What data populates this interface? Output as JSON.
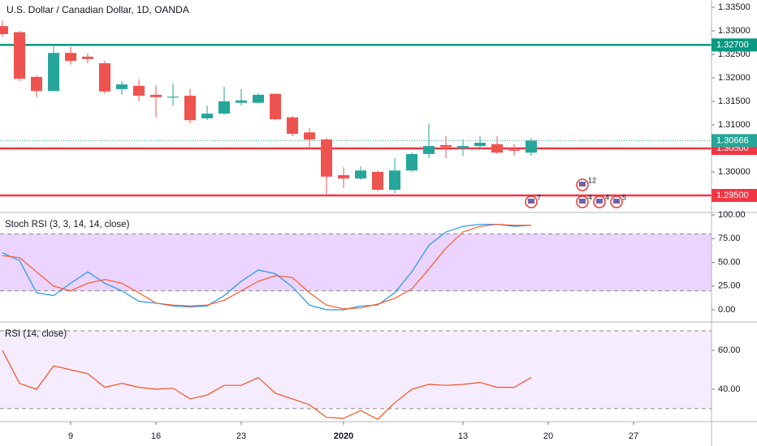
{
  "chart_data": [
    {
      "type": "candlestick",
      "title": "U.S. Dollar / Canadian Dollar, 1D, OANDA",
      "x": [
        0,
        1,
        2,
        3,
        4,
        5,
        6,
        7,
        8,
        9,
        10,
        11,
        12,
        13,
        14,
        15,
        16,
        17,
        18,
        19,
        20,
        21,
        22,
        23,
        24,
        25,
        26,
        27,
        28,
        29,
        30,
        31
      ],
      "open": [
        1.331,
        1.3297,
        1.3202,
        1.3172,
        1.3253,
        1.3245,
        1.3231,
        1.3176,
        1.3183,
        1.3164,
        1.3158,
        1.3162,
        1.3114,
        1.3124,
        1.3147,
        1.3147,
        1.3166,
        1.3116,
        1.3084,
        1.3069,
        1.2993,
        1.2986,
        1.3,
        1.2962,
        1.3003,
        1.3038,
        1.3057,
        1.305,
        1.3055,
        1.3059,
        1.3047,
        1.3041
      ],
      "high": [
        1.3322,
        1.33,
        1.3205,
        1.3267,
        1.3266,
        1.3252,
        1.3236,
        1.3193,
        1.3197,
        1.3184,
        1.3188,
        1.3176,
        1.3141,
        1.3181,
        1.3176,
        1.3167,
        1.3167,
        1.3119,
        1.3093,
        1.3072,
        1.301,
        1.3012,
        1.3003,
        1.3029,
        1.3041,
        1.3103,
        1.3076,
        1.3069,
        1.3076,
        1.3076,
        1.3059,
        1.3072
      ],
      "low": [
        1.3288,
        1.3193,
        1.3159,
        1.3172,
        1.3228,
        1.3231,
        1.3167,
        1.3164,
        1.315,
        1.3116,
        1.3141,
        1.3103,
        1.311,
        1.3121,
        1.3141,
        1.3145,
        1.311,
        1.3076,
        1.3052,
        1.2948,
        1.2966,
        1.2983,
        1.2959,
        1.2955,
        1.3,
        1.3029,
        1.3029,
        1.3034,
        1.3047,
        1.3038,
        1.3034,
        1.3034
      ],
      "close": [
        1.3293,
        1.3198,
        1.3172,
        1.3253,
        1.3236,
        1.324,
        1.3171,
        1.3186,
        1.3162,
        1.3159,
        1.316,
        1.311,
        1.3124,
        1.315,
        1.3152,
        1.3164,
        1.3112,
        1.3081,
        1.3069,
        1.299,
        1.2986,
        1.3003,
        1.2962,
        1.3003,
        1.3038,
        1.3055,
        1.3053,
        1.3055,
        1.3062,
        1.3041,
        1.3045,
        1.30666
      ],
      "up_color": "#26a69a",
      "down_color": "#ef5350",
      "xlim": [
        -0.143,
        41.571
      ],
      "ylim": [
        1.29138,
        1.33655
      ],
      "yticks": [
        {
          "value": 1.335,
          "label": "1.33500"
        },
        {
          "value": 1.33,
          "label": "1.33000"
        },
        {
          "value": 1.325,
          "label": "1.32500"
        },
        {
          "value": 1.32,
          "label": "1.32000"
        },
        {
          "value": 1.315,
          "label": "1.31500"
        },
        {
          "value": 1.31,
          "label": "1.31000"
        },
        {
          "value": 1.3,
          "label": "1.30000"
        }
      ],
      "hlines": [
        {
          "value": 1.327,
          "label": "1.32700",
          "color": "#089981"
        },
        {
          "value": 1.305,
          "label": "1.30500",
          "color": "#f23645"
        },
        {
          "value": 1.295,
          "label": "1.29500",
          "color": "#f23645"
        }
      ],
      "last_price": {
        "value": 1.30666,
        "label": "1.30666",
        "color": "#26a69a"
      },
      "events": [
        {
          "x": 31,
          "label": "7"
        },
        {
          "x": 34,
          "label": "4"
        },
        {
          "x": 34,
          "label": "12"
        },
        {
          "x": 35,
          "label": "4"
        },
        {
          "x": 36,
          "label": "5"
        }
      ]
    },
    {
      "type": "line",
      "title": "Stoch RSI (3, 3, 14, 14, close)",
      "x": [
        0,
        1,
        2,
        3,
        4,
        5,
        6,
        7,
        8,
        9,
        10,
        11,
        12,
        13,
        14,
        15,
        16,
        17,
        18,
        19,
        20,
        21,
        22,
        23,
        24,
        25,
        26,
        27,
        28,
        29,
        30,
        31
      ],
      "series": [
        {
          "color": "#2196f3",
          "values": [
            60,
            52,
            18,
            15,
            28,
            40,
            28,
            20,
            9,
            7,
            4,
            3,
            4,
            15,
            30,
            42,
            38,
            24,
            5,
            0,
            0,
            4,
            5,
            18,
            40,
            68,
            82,
            88,
            90,
            90,
            88,
            89
          ]
        },
        {
          "color": "#ff5722",
          "values": [
            57,
            55,
            40,
            25,
            20,
            28,
            32,
            28,
            18,
            7,
            5,
            4,
            5,
            10,
            20,
            30,
            36,
            34,
            18,
            5,
            1,
            2,
            6,
            12,
            22,
            43,
            65,
            82,
            88,
            90,
            89,
            89
          ]
        }
      ],
      "xlim": [
        -0.143,
        41.571
      ],
      "ylim": [
        -12.8,
        102.6
      ],
      "yticks": [
        {
          "value": 100,
          "label": "100.00"
        },
        {
          "value": 75,
          "label": "75.00"
        },
        {
          "value": 50,
          "label": "50.00"
        },
        {
          "value": 25,
          "label": "25.00"
        },
        {
          "value": 0,
          "label": "0.00"
        }
      ],
      "bands": [
        20,
        80
      ],
      "band_color": "rgba(156, 39, 255, 0.2)"
    },
    {
      "type": "line",
      "title": "RSI (14, close)",
      "x": [
        0,
        1,
        2,
        3,
        4,
        5,
        6,
        7,
        8,
        9,
        10,
        11,
        12,
        13,
        14,
        15,
        16,
        17,
        18,
        19,
        20,
        21,
        22,
        23,
        24,
        25,
        26,
        27,
        28,
        29,
        30,
        31
      ],
      "series": [
        {
          "color": "#f4511e",
          "values": [
            60,
            43,
            40,
            52,
            50,
            48,
            41,
            43,
            41,
            40,
            40.5,
            35,
            37,
            42,
            42,
            46,
            38,
            35,
            32,
            25.5,
            25,
            29,
            24.5,
            33,
            40,
            42.5,
            42,
            42.5,
            43.5,
            41,
            41,
            46
          ]
        }
      ],
      "xlim": [
        -0.143,
        41.571
      ],
      "ylim": [
        23.3,
        74.6
      ],
      "yticks": [
        {
          "value": 60,
          "label": "60.00"
        },
        {
          "value": 40,
          "label": "40.00"
        }
      ],
      "bands": [
        30,
        70
      ],
      "band_color": "rgba(156, 39, 255, 0.09)",
      "xticks": [
        {
          "value": 4,
          "label": "9"
        },
        {
          "value": 9,
          "label": "16"
        },
        {
          "value": 14,
          "label": "23"
        },
        {
          "value": 20,
          "label": "2020"
        },
        {
          "value": 27,
          "label": "13"
        },
        {
          "value": 32,
          "label": "20"
        },
        {
          "value": 37,
          "label": "27"
        }
      ]
    }
  ]
}
